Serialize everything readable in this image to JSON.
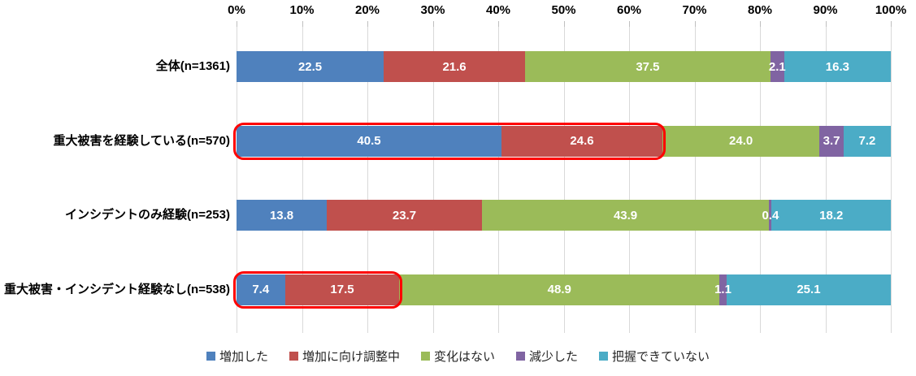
{
  "chart_data": {
    "type": "bar",
    "subtype": "horizontal-stacked-percentage",
    "title": "",
    "xlabel": "",
    "ylabel": "",
    "x_axis": {
      "min": 0,
      "max": 100,
      "ticks": [
        "0%",
        "10%",
        "20%",
        "30%",
        "40%",
        "50%",
        "60%",
        "70%",
        "80%",
        "90%",
        "100%"
      ],
      "position": "top"
    },
    "grid": true,
    "legend_position": "bottom",
    "categories": [
      "全体(n=1361)",
      "重大被害を経験している(n=570)",
      "インシデントのみ経験(n=253)",
      "重大被害・インシデント経験なし(n=538)"
    ],
    "series": [
      {
        "name": "増加した",
        "color": "#4f81bd",
        "values": [
          22.5,
          40.5,
          13.8,
          7.4
        ]
      },
      {
        "name": "増加に向け調整中",
        "color": "#c0504d",
        "values": [
          21.6,
          24.6,
          23.7,
          17.5
        ]
      },
      {
        "name": "変化はない",
        "color": "#9bbb59",
        "values": [
          37.5,
          24.0,
          43.9,
          48.9
        ]
      },
      {
        "name": "減少した",
        "color": "#8064a2",
        "values": [
          2.1,
          3.7,
          0.4,
          1.1
        ]
      },
      {
        "name": "把握できていない",
        "color": "#4bacc6",
        "values": [
          16.3,
          7.2,
          18.2,
          25.1
        ]
      }
    ],
    "rows": [
      {
        "label": "全体(n=1361)",
        "values": [
          22.5,
          21.6,
          37.5,
          2.1,
          16.3
        ]
      },
      {
        "label": "重大被害を経験している(n=570)",
        "values": [
          40.5,
          24.6,
          24.0,
          3.7,
          7.2
        ]
      },
      {
        "label": "インシデントのみ経験(n=253)",
        "values": [
          13.8,
          23.7,
          43.9,
          0.4,
          18.2
        ]
      },
      {
        "label": "重大被害・インシデント経験なし(n=538)",
        "values": [
          7.4,
          17.5,
          48.9,
          1.1,
          25.1
        ]
      }
    ],
    "annotations": {
      "highlights": [
        {
          "row": 1,
          "segments": [
            0,
            1
          ],
          "style": "red-rounded-outline"
        },
        {
          "row": 3,
          "segments": [
            0,
            1
          ],
          "style": "red-rounded-outline"
        }
      ],
      "highlight_color": "#fe0000"
    },
    "colors": {
      "background": "#ffffff",
      "gridline": "#d9d9d9",
      "tick_mark": "#bfbfbf",
      "axis_text": "#000000",
      "category_text": "#000000",
      "data_label_text": "#ffffff"
    }
  }
}
